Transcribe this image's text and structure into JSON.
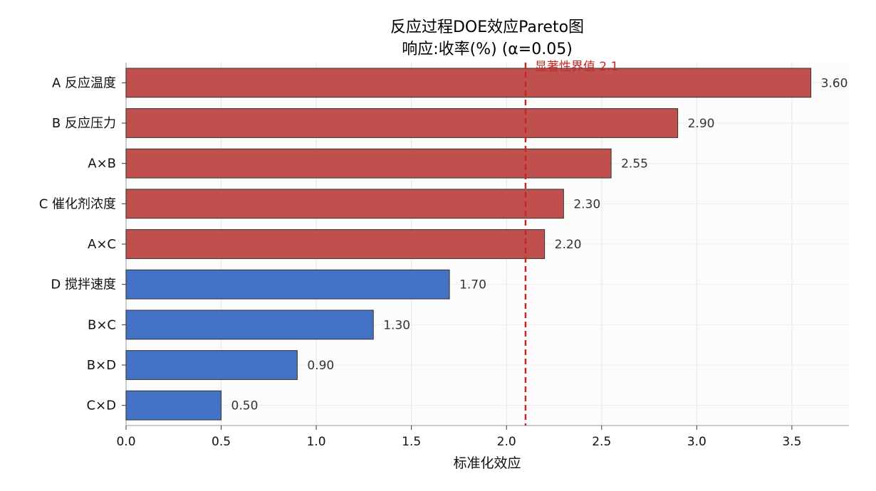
{
  "chart_data": {
    "type": "bar",
    "orientation": "horizontal",
    "title_line1": "反应过程DOE效应Pareto图",
    "title_line2": "响应:收率(%)  (α=0.05)",
    "xlabel": "标准化效应",
    "ylabel": "",
    "xlim": [
      0,
      3.8
    ],
    "xticks": [
      "0.0",
      "0.5",
      "1.0",
      "1.5",
      "2.0",
      "2.5",
      "3.0",
      "3.5"
    ],
    "grid": true,
    "categories": [
      "A 反应温度",
      "B 反应压力",
      "A×B",
      "C 催化剂浓度",
      "A×C",
      "D 搅拌速度",
      "B×C",
      "B×D",
      "C×D"
    ],
    "values": [
      3.6,
      2.9,
      2.55,
      2.3,
      2.2,
      1.7,
      1.3,
      0.9,
      0.5
    ],
    "value_labels": [
      "3.60",
      "2.90",
      "2.55",
      "2.30",
      "2.20",
      "1.70",
      "1.30",
      "0.90",
      "0.50"
    ],
    "threshold": {
      "value": 2.1,
      "label": "显著性界值 2.1"
    },
    "colors": {
      "significant": "#c0504d",
      "not_significant": "#4472c4",
      "threshold": "#c62828",
      "bar_edge": "#333333",
      "grid": "#e6e6e6",
      "axis": "#bbbbbb"
    }
  }
}
